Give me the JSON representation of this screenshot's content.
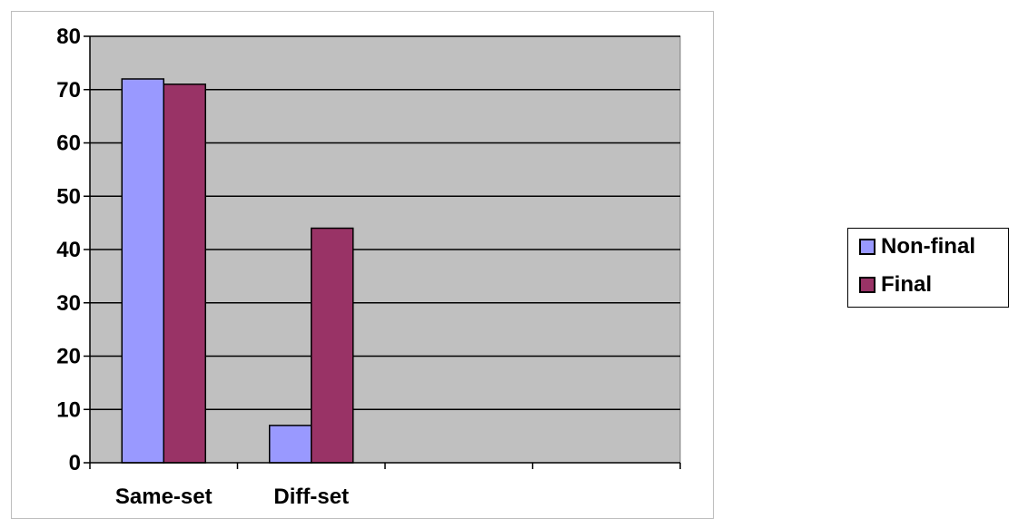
{
  "chart_data": {
    "type": "bar",
    "categories": [
      "Same-set",
      "Diff-set",
      "",
      ""
    ],
    "series": [
      {
        "name": "Non-final",
        "values": [
          72,
          7,
          null,
          null
        ],
        "color": "#9999ff"
      },
      {
        "name": "Final",
        "values": [
          71,
          44,
          null,
          null
        ],
        "color": "#993366"
      }
    ],
    "title": "",
    "xlabel": "",
    "ylabel": "",
    "ylim": [
      0,
      80
    ],
    "yticks": [
      0,
      10,
      20,
      30,
      40,
      50,
      60,
      70,
      80
    ],
    "grid": true,
    "plot_background": "#c0c0c0",
    "legend_position": "right"
  }
}
